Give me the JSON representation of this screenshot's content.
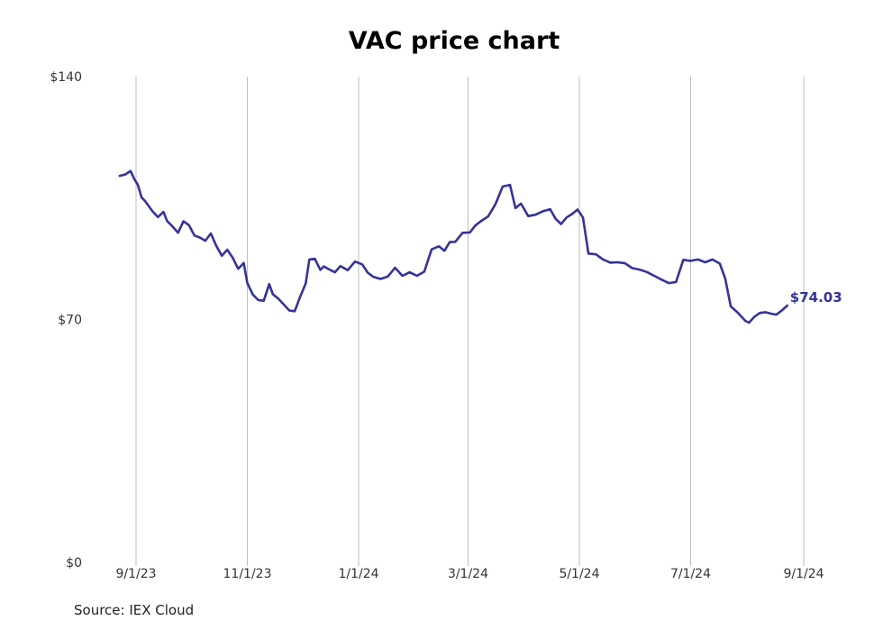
{
  "source_note": "Source: IEX Cloud",
  "line_color": "#353399",
  "chart_data": {
    "type": "line",
    "title": "VAC price chart",
    "xlabel": "",
    "ylabel": "",
    "ylim": [
      0,
      140
    ],
    "y_ticks": [
      0,
      70,
      140
    ],
    "y_tick_labels": [
      "$0",
      "$70",
      "$140"
    ],
    "x_ticks": [
      "2023-09-01",
      "2023-11-01",
      "2024-01-01",
      "2024-03-01",
      "2024-05-01",
      "2024-07-01",
      "2024-09-01"
    ],
    "x_tick_labels": [
      "9/1/23",
      "11/1/23",
      "1/1/24",
      "3/1/24",
      "5/1/24",
      "7/1/24",
      "9/1/24"
    ],
    "grid": "vertical",
    "last_value_label": "$74.03",
    "series": [
      {
        "x": [
          "2023-08-23",
          "2023-08-26",
          "2023-08-29",
          "2023-08-31",
          "2023-09-02",
          "2023-09-04",
          "2023-09-06",
          "2023-09-10",
          "2023-09-13",
          "2023-09-16",
          "2023-09-18",
          "2023-09-21",
          "2023-09-24",
          "2023-09-27",
          "2023-09-30",
          "2023-10-03",
          "2023-10-06",
          "2023-10-09",
          "2023-10-12",
          "2023-10-15",
          "2023-10-18",
          "2023-10-21",
          "2023-10-24",
          "2023-10-27",
          "2023-10-30",
          "2023-11-01",
          "2023-11-04",
          "2023-11-07",
          "2023-11-10",
          "2023-11-13",
          "2023-11-15",
          "2023-11-18",
          "2023-11-21",
          "2023-11-24",
          "2023-11-27",
          "2023-11-30",
          "2023-12-03",
          "2023-12-05",
          "2023-12-08",
          "2023-12-11",
          "2023-12-13",
          "2023-12-16",
          "2023-12-19",
          "2023-12-22",
          "2023-12-26",
          "2023-12-30",
          "2024-01-03",
          "2024-01-06",
          "2024-01-09",
          "2024-01-13",
          "2024-01-17",
          "2024-01-21",
          "2024-01-25",
          "2024-01-29",
          "2024-02-02",
          "2024-02-06",
          "2024-02-10",
          "2024-02-14",
          "2024-02-17",
          "2024-02-20",
          "2024-02-23",
          "2024-02-27",
          "2024-03-02",
          "2024-03-05",
          "2024-03-08",
          "2024-03-12",
          "2024-03-16",
          "2024-03-20",
          "2024-03-24",
          "2024-03-27",
          "2024-03-30",
          "2024-04-03",
          "2024-04-07",
          "2024-04-11",
          "2024-04-15",
          "2024-04-18",
          "2024-04-21",
          "2024-04-24",
          "2024-04-27",
          "2024-04-30",
          "2024-05-03",
          "2024-05-06",
          "2024-05-10",
          "2024-05-14",
          "2024-05-18",
          "2024-05-22",
          "2024-05-26",
          "2024-05-30",
          "2024-06-03",
          "2024-06-07",
          "2024-06-11",
          "2024-06-15",
          "2024-06-19",
          "2024-06-23",
          "2024-06-27",
          "2024-07-01",
          "2024-07-05",
          "2024-07-09",
          "2024-07-13",
          "2024-07-17",
          "2024-07-20",
          "2024-07-23",
          "2024-07-27",
          "2024-07-31",
          "2024-08-02",
          "2024-08-05",
          "2024-08-08",
          "2024-08-11",
          "2024-08-14",
          "2024-08-17",
          "2024-08-20",
          "2024-08-23"
        ],
        "values": [
          111.4,
          111.8,
          112.8,
          110.5,
          108.8,
          105.2,
          104.1,
          101.2,
          99.5,
          101.0,
          98.4,
          96.8,
          95.0,
          98.3,
          97.2,
          94.2,
          93.6,
          92.7,
          94.8,
          91.2,
          88.4,
          90.1,
          87.8,
          84.6,
          86.3,
          80.5,
          77.2,
          75.6,
          75.4,
          80.2,
          77.3,
          76.0,
          74.3,
          72.6,
          72.4,
          76.6,
          80.4,
          87.3,
          87.5,
          84.3,
          85.3,
          84.4,
          83.6,
          85.4,
          84.2,
          86.7,
          85.9,
          83.5,
          82.3,
          81.7,
          82.4,
          84.9,
          82.6,
          83.6,
          82.6,
          83.8,
          90.2,
          91.1,
          89.8,
          92.3,
          92.4,
          95.0,
          95.1,
          97.1,
          98.3,
          99.7,
          103.2,
          108.3,
          108.8,
          102.1,
          103.4,
          99.8,
          100.2,
          101.2,
          101.8,
          99.0,
          97.5,
          99.4,
          100.4,
          101.7,
          99.4,
          89.0,
          88.8,
          87.3,
          86.4,
          86.5,
          86.2,
          84.8,
          84.4,
          83.7,
          82.6,
          81.5,
          80.5,
          80.8,
          87.2,
          86.9,
          87.3,
          86.5,
          87.3,
          86.1,
          81.8,
          73.8,
          71.9,
          69.6,
          69.1,
          70.8,
          71.9,
          72.1,
          71.7,
          71.4,
          72.6,
          74.03
        ]
      }
    ]
  }
}
